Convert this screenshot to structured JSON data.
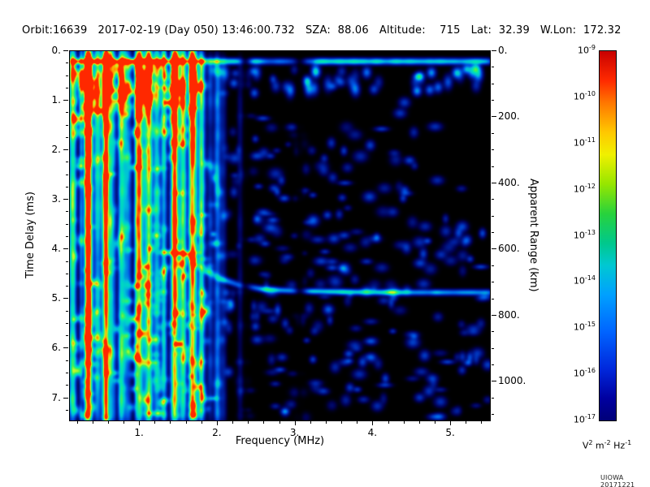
{
  "header": {
    "line": "Orbit:16639   2017-02-19 (Day 050) 13:46:00.732   SZA:  88.06   Altitude:    715   Lat:  32.39   W.Lon:  172.32",
    "orbit": "16639",
    "date": "2017-02-19",
    "day_of_year": "050",
    "time_utc": "13:46:00.732",
    "sza_deg": "88.06",
    "altitude_km": "715",
    "lat_deg": "32.39",
    "w_lon_deg": "172.32"
  },
  "footer": {
    "credit": "UIOWA 20171221"
  },
  "chart_data": {
    "type": "heatmap",
    "title": "",
    "xlabel": "Frequency (MHz)",
    "ylabel": "Time Delay (ms)",
    "y2label": "Apparent Range (km)",
    "xlim": [
      0.1,
      5.5
    ],
    "ylim": [
      0,
      7.45
    ],
    "y2lim": [
      0,
      1117
    ],
    "grid": false,
    "background_color": "#000000",
    "x_ticks": [
      {
        "v": 1,
        "label": "1."
      },
      {
        "v": 2,
        "label": "2."
      },
      {
        "v": 3,
        "label": "3."
      },
      {
        "v": 4,
        "label": "4."
      },
      {
        "v": 5,
        "label": "5."
      }
    ],
    "y_ticks": [
      {
        "v": 0,
        "label": "0."
      },
      {
        "v": 1,
        "label": "1."
      },
      {
        "v": 2,
        "label": "2."
      },
      {
        "v": 3,
        "label": "3."
      },
      {
        "v": 4,
        "label": "4."
      },
      {
        "v": 5,
        "label": "5."
      },
      {
        "v": 6,
        "label": "6."
      },
      {
        "v": 7,
        "label": "7."
      }
    ],
    "y2_ticks": [
      {
        "v": 0,
        "label": "0."
      },
      {
        "v": 200,
        "label": "200."
      },
      {
        "v": 400,
        "label": "400."
      },
      {
        "v": 600,
        "label": "600."
      },
      {
        "v": 800,
        "label": "800."
      },
      {
        "v": 1000,
        "label": "1000."
      }
    ],
    "colorbar": {
      "base": "10",
      "exponents": [
        -9,
        -10,
        -11,
        -12,
        -13,
        -14,
        -15,
        -16,
        -17
      ],
      "unit_parts": [
        {
          "base": "V",
          "exp": "2"
        },
        {
          "base": "m",
          "exp": "-2"
        },
        {
          "base": "Hz",
          "exp": "-1"
        }
      ],
      "gradient": [
        {
          "p": 0,
          "c": "#c80000"
        },
        {
          "p": 8,
          "c": "#ff2a00"
        },
        {
          "p": 14,
          "c": "#ff7700"
        },
        {
          "p": 22,
          "c": "#ffc800"
        },
        {
          "p": 28,
          "c": "#f0f000"
        },
        {
          "p": 36,
          "c": "#96e600"
        },
        {
          "p": 44,
          "c": "#28d23c"
        },
        {
          "p": 52,
          "c": "#00c88c"
        },
        {
          "p": 58,
          "c": "#00c8d2"
        },
        {
          "p": 66,
          "c": "#00a0ff"
        },
        {
          "p": 76,
          "c": "#0064ff"
        },
        {
          "p": 86,
          "c": "#0028dc"
        },
        {
          "p": 94,
          "c": "#0000a0"
        },
        {
          "p": 100,
          "c": "#000078"
        }
      ]
    },
    "heatmap_colormap": [
      {
        "p": 0,
        "c": "#000000"
      },
      {
        "p": 0.05,
        "c": "#000050"
      },
      {
        "p": 0.16,
        "c": "#0020a0"
      },
      {
        "p": 0.3,
        "c": "#005ae6"
      },
      {
        "p": 0.45,
        "c": "#00bedc"
      },
      {
        "p": 0.58,
        "c": "#00e6b4"
      },
      {
        "p": 0.7,
        "c": "#46f055"
      },
      {
        "p": 0.8,
        "c": "#c8fa28"
      },
      {
        "p": 0.9,
        "c": "#ffaa00"
      },
      {
        "p": 1,
        "c": "#ff2800"
      }
    ],
    "features": {
      "surface_echo_delay_ms": 0.2,
      "ionospheric_stripes": [
        {
          "f": 0.13,
          "b": 0.55
        },
        {
          "f": 0.24,
          "b": 0.3
        },
        {
          "f": 0.35,
          "b": 0.5
        },
        {
          "f": 0.45,
          "b": 0.25
        },
        {
          "f": 0.55,
          "b": 0.48
        },
        {
          "f": 0.66,
          "b": 0.3
        },
        {
          "f": 0.75,
          "b": 0.52
        },
        {
          "f": 0.85,
          "b": 0.28
        },
        {
          "f": 0.95,
          "b": 0.45
        },
        {
          "f": 1.05,
          "b": 0.3
        },
        {
          "f": 1.12,
          "b": 0.5
        },
        {
          "f": 1.22,
          "b": 0.35
        },
        {
          "f": 1.3,
          "b": 0.4
        },
        {
          "f": 1.42,
          "b": 0.28
        },
        {
          "f": 1.55,
          "b": 0.52
        },
        {
          "f": 1.65,
          "b": 0.3
        },
        {
          "f": 1.78,
          "b": 0.32
        }
      ],
      "echo_trace_points": [
        [
          1.28,
          4.05
        ],
        [
          1.62,
          4.08
        ],
        [
          1.72,
          4.3
        ],
        [
          1.88,
          4.45
        ],
        [
          2.05,
          4.6
        ],
        [
          2.3,
          4.72
        ],
        [
          2.6,
          4.8
        ],
        [
          3.0,
          4.83
        ],
        [
          3.6,
          4.85
        ],
        [
          4.2,
          4.86
        ],
        [
          4.8,
          4.86
        ],
        [
          5.5,
          4.86
        ]
      ],
      "dark_gap_freqs_mhz": [
        2.35,
        3.05
      ]
    }
  }
}
